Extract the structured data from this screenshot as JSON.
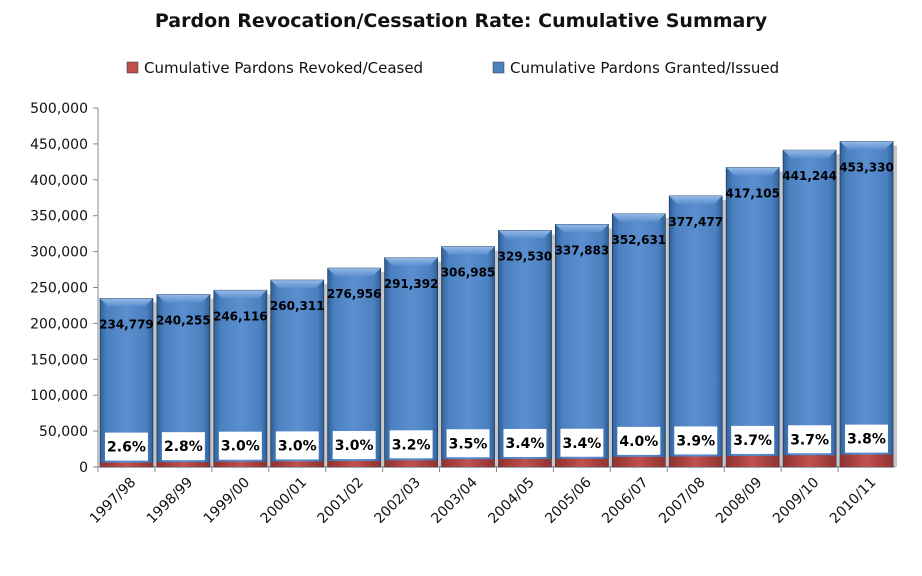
{
  "chart_data": {
    "type": "bar",
    "title": "Pardon Revocation/Cessation Rate: Cumulative Summary",
    "categories": [
      "1997/98",
      "1998/99",
      "1999/00",
      "2000/01",
      "2001/02",
      "2002/03",
      "2003/04",
      "2004/05",
      "2005/06",
      "2006/07",
      "2007/08",
      "2008/09",
      "2009/10",
      "2010/11"
    ],
    "series": [
      {
        "name": "Cumulative Pardons Revoked/Ceased",
        "color": "#c0504d",
        "values": [
          6104,
          6727,
          7383,
          7809,
          8309,
          9325,
          10744,
          11204,
          11488,
          14105,
          14722,
          15433,
          16326,
          17227
        ]
      },
      {
        "name": "Cumulative Pardons Granted/Issued",
        "color": "#4f81bd",
        "values": [
          234779,
          240255,
          246116,
          260311,
          276956,
          291392,
          306985,
          329530,
          337883,
          352631,
          377477,
          417105,
          441244,
          453330
        ],
        "data_labels": [
          "234,779",
          "240,255",
          "246,116",
          "260,311",
          "276,956",
          "291,392",
          "306,985",
          "329,530",
          "337,883",
          "352,631",
          "377,477",
          "417,105",
          "441,244",
          "453,330"
        ]
      }
    ],
    "rate_labels": [
      "2.6%",
      "2.8%",
      "3.0%",
      "3.0%",
      "3.0%",
      "3.2%",
      "3.5%",
      "3.4%",
      "3.4%",
      "4.0%",
      "3.9%",
      "3.7%",
      "3.7%",
      "3.8%"
    ],
    "yticks": [
      "0",
      "50,000",
      "100,000",
      "150,000",
      "200,000",
      "250,000",
      "300,000",
      "350,000",
      "400,000",
      "450,000",
      "500,000"
    ],
    "ylim": [
      0,
      500000
    ],
    "xlabel": "",
    "ylabel": "",
    "grid": false,
    "legend_position": "top"
  }
}
